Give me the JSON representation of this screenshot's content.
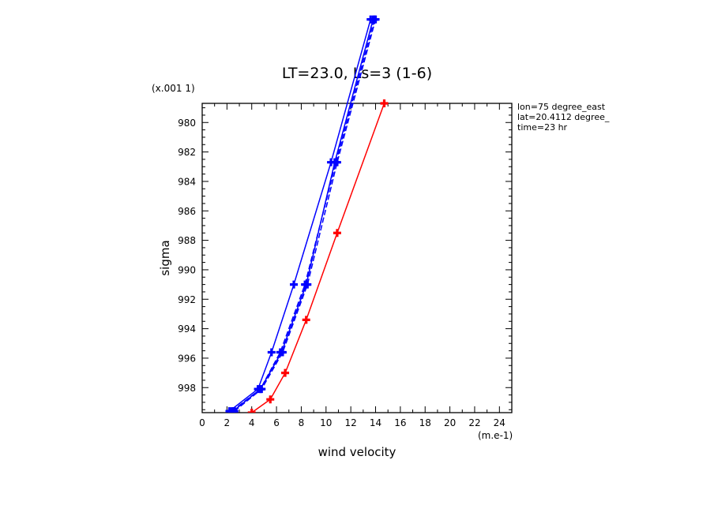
{
  "chart_data": {
    "type": "line",
    "title": "LT=23.0,  Ls=3 (1-6)",
    "xlabel": "wind velocity",
    "x_unit": "(m.e-1)",
    "ylabel": "sigma",
    "y_multiplier": "(x.001 1)",
    "xlim": [
      0,
      25
    ],
    "ylim": [
      999.7,
      978.7
    ],
    "x_ticks": [
      0,
      2,
      4,
      6,
      8,
      10,
      12,
      14,
      16,
      18,
      20,
      22,
      24
    ],
    "y_ticks": [
      980,
      982,
      984,
      986,
      988,
      990,
      992,
      994,
      996,
      998
    ],
    "grid": false,
    "annotations": [
      "lon=75 degree_east",
      "lat=20.4112 degree_",
      "time=23 hr"
    ],
    "series": [
      {
        "color": "#0000ff",
        "dash": "solid",
        "marker": "plus",
        "x": [
          2.2,
          4.5,
          5.6,
          7.4,
          10.4,
          13.6
        ],
        "y": [
          999.6,
          998.1,
          995.6,
          991.0,
          982.7,
          973.0
        ]
      },
      {
        "color": "#0000ff",
        "dash": "dashed",
        "marker": "plus",
        "x": [
          2.4,
          4.7,
          6.3,
          8.3,
          10.8,
          13.9
        ],
        "y": [
          999.6,
          998.1,
          995.6,
          991.0,
          982.7,
          973.0
        ]
      },
      {
        "color": "#0000ff",
        "dash": "dashed",
        "marker": "plus",
        "x": [
          2.6,
          4.8,
          6.5,
          8.5,
          10.9,
          14.0
        ],
        "y": [
          999.6,
          998.1,
          995.6,
          991.0,
          982.7,
          973.0
        ]
      },
      {
        "color": "#0000ff",
        "dash": "solid",
        "marker": "plus",
        "x": [
          2.5,
          4.7,
          6.4,
          8.4,
          10.7,
          13.8
        ],
        "y": [
          999.6,
          998.1,
          995.6,
          991.0,
          982.7,
          973.0
        ]
      },
      {
        "color": "#ff0000",
        "dash": "solid",
        "marker": "plus",
        "x": [
          4.0,
          5.5,
          6.7,
          8.4,
          10.9,
          14.7
        ],
        "y": [
          999.7,
          998.8,
          997.0,
          993.4,
          987.5,
          978.7
        ]
      }
    ]
  }
}
